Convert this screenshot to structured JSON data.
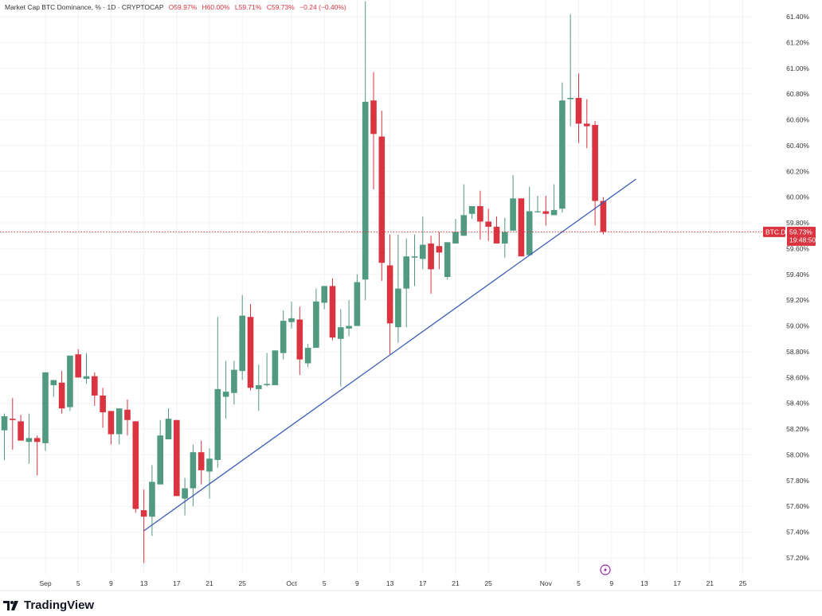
{
  "header": {
    "title": "Market Cap BTC Dominance, % · 1D · CRYPTOCAP",
    "open": "O59.97%",
    "high": "H60.00%",
    "low": "L59.71%",
    "close": "C59.73%",
    "change": "−0.24 (−0.40%)"
  },
  "price_tag": {
    "symbol": "BTC.D",
    "value": "59.73%",
    "countdown": "19:48:50"
  },
  "logo": {
    "text": "TradingView"
  },
  "icons": {
    "event": "lightning-icon",
    "logo": "tradingview-logo-icon"
  },
  "colors": {
    "up": "#519a80",
    "down": "#d9343f",
    "trendline": "#3b5bb5",
    "tag": "#d9343f"
  },
  "chart_data": {
    "type": "candlestick",
    "title": "Market Cap BTC Dominance, % · 1D · CRYPTOCAP",
    "ylim": [
      57.1,
      61.5
    ],
    "y_ticks": [
      "61.40%",
      "61.20%",
      "61.00%",
      "60.80%",
      "60.60%",
      "60.40%",
      "60.20%",
      "60.00%",
      "59.80%",
      "59.60%",
      "59.40%",
      "59.20%",
      "59.00%",
      "58.80%",
      "58.60%",
      "58.40%",
      "58.20%",
      "58.00%",
      "57.80%",
      "57.60%",
      "57.40%",
      "57.20%"
    ],
    "x_ticks": [
      "Sep",
      "5",
      "9",
      "13",
      "17",
      "21",
      "25",
      "Oct",
      "5",
      "9",
      "13",
      "17",
      "21",
      "25",
      "Nov",
      "5",
      "9",
      "13",
      "17",
      "21",
      "25"
    ],
    "x_tick_dates": [
      "Sep 1",
      "Sep 5",
      "Sep 9",
      "Sep 13",
      "Sep 17",
      "Sep 21",
      "Sep 25",
      "Oct 1",
      "Oct 5",
      "Oct 9",
      "Oct 13",
      "Oct 17",
      "Oct 21",
      "Oct 25",
      "Nov 1",
      "Nov 5",
      "Nov 9",
      "Nov 13",
      "Nov 17",
      "Nov 21",
      "Nov 25"
    ],
    "grid": true,
    "current_price": 59.73,
    "trendline": {
      "from": [
        "Sep 13",
        57.41
      ],
      "to": [
        "Nov 12",
        60.14
      ]
    },
    "candles_fields": [
      "date",
      "open",
      "high",
      "low",
      "close"
    ],
    "candles": [
      [
        "Aug 27",
        58.19,
        58.32,
        57.96,
        58.3
      ],
      [
        "Aug 28",
        58.28,
        58.44,
        58.04,
        58.27
      ],
      [
        "Aug 29",
        58.26,
        58.31,
        58.11,
        58.11
      ],
      [
        "Aug 30",
        58.1,
        58.32,
        57.93,
        58.13
      ],
      [
        "Aug 31",
        58.13,
        58.15,
        57.84,
        58.1
      ],
      [
        "Sep 1",
        58.09,
        58.64,
        58.03,
        58.64
      ],
      [
        "Sep 2",
        58.54,
        58.58,
        58.45,
        58.58
      ],
      [
        "Sep 3",
        58.56,
        58.65,
        58.32,
        58.36
      ],
      [
        "Sep 4",
        58.37,
        58.77,
        58.34,
        58.77
      ],
      [
        "Sep 5",
        58.78,
        58.82,
        58.6,
        58.6
      ],
      [
        "Sep 6",
        58.59,
        58.79,
        58.55,
        58.61
      ],
      [
        "Sep 7",
        58.61,
        58.64,
        58.38,
        58.46
      ],
      [
        "Sep 8",
        58.46,
        58.52,
        58.21,
        58.33
      ],
      [
        "Sep 9",
        58.34,
        58.34,
        58.08,
        58.16
      ],
      [
        "Sep 10",
        58.16,
        58.36,
        58.08,
        58.36
      ],
      [
        "Sep 11",
        58.35,
        58.43,
        58.15,
        58.27
      ],
      [
        "Sep 12",
        58.26,
        58.26,
        57.55,
        57.58
      ],
      [
        "Sep 13",
        57.57,
        57.73,
        57.16,
        57.52
      ],
      [
        "Sep 14",
        57.52,
        57.92,
        57.37,
        57.79
      ],
      [
        "Sep 15",
        57.77,
        58.27,
        57.77,
        58.15
      ],
      [
        "Sep 16",
        58.12,
        58.36,
        58.12,
        58.28
      ],
      [
        "Sep 17",
        58.27,
        58.27,
        57.68,
        57.68
      ],
      [
        "Sep 18",
        57.66,
        57.82,
        57.53,
        57.74
      ],
      [
        "Sep 19",
        57.74,
        58.08,
        57.6,
        58.02
      ],
      [
        "Sep 20",
        58.02,
        58.11,
        57.77,
        57.88
      ],
      [
        "Sep 21",
        57.87,
        58.05,
        57.66,
        57.97
      ],
      [
        "Sep 22",
        57.96,
        59.07,
        57.9,
        58.51
      ],
      [
        "Sep 23",
        58.45,
        58.73,
        58.28,
        58.49
      ],
      [
        "Sep 24",
        58.48,
        58.73,
        58.39,
        58.66
      ],
      [
        "Sep 25",
        58.65,
        59.24,
        58.58,
        59.08
      ],
      [
        "Sep 26",
        59.07,
        59.17,
        58.5,
        58.52
      ],
      [
        "Sep 27",
        58.51,
        58.7,
        58.34,
        58.54
      ],
      [
        "Sep 28",
        58.54,
        58.79,
        58.53,
        58.55
      ],
      [
        "Sep 29",
        58.54,
        58.81,
        58.54,
        58.81
      ],
      [
        "Sep 30",
        58.79,
        59.12,
        58.74,
        59.04
      ],
      [
        "Oct 1",
        59.03,
        59.19,
        58.98,
        59.06
      ],
      [
        "Oct 2",
        59.05,
        59.15,
        58.62,
        58.74
      ],
      [
        "Oct 3",
        58.71,
        58.86,
        58.68,
        58.83
      ],
      [
        "Oct 4",
        58.83,
        59.29,
        58.83,
        59.19
      ],
      [
        "Oct 5",
        59.18,
        59.31,
        59.13,
        59.31
      ],
      [
        "Oct 6",
        59.31,
        59.37,
        58.89,
        58.91
      ],
      [
        "Oct 7",
        58.9,
        59.13,
        58.53,
        58.99
      ],
      [
        "Oct 8",
        58.98,
        59.2,
        58.92,
        59.0
      ],
      [
        "Oct 9",
        59.0,
        59.4,
        59.0,
        59.34
      ],
      [
        "Oct 10",
        59.36,
        61.52,
        59.2,
        60.74
      ],
      [
        "Oct 11",
        60.75,
        60.97,
        60.06,
        60.49
      ],
      [
        "Oct 12",
        60.47,
        60.67,
        59.35,
        59.49
      ],
      [
        "Oct 13",
        59.47,
        59.71,
        58.78,
        59.02
      ],
      [
        "Oct 14",
        58.99,
        59.71,
        58.87,
        59.29
      ],
      [
        "Oct 15",
        59.29,
        59.68,
        58.99,
        59.54
      ],
      [
        "Oct 16",
        59.53,
        59.71,
        59.31,
        59.54
      ],
      [
        "Oct 17",
        59.52,
        59.85,
        59.44,
        59.63
      ],
      [
        "Oct 18",
        59.64,
        59.7,
        59.25,
        59.44
      ],
      [
        "Oct 19",
        59.62,
        59.73,
        59.44,
        59.57
      ],
      [
        "Oct 20",
        59.38,
        59.65,
        59.36,
        59.65
      ],
      [
        "Oct 21",
        59.64,
        59.83,
        59.64,
        59.73
      ],
      [
        "Oct 22",
        59.7,
        60.1,
        59.7,
        59.86
      ],
      [
        "Oct 23",
        59.87,
        59.93,
        59.83,
        59.93
      ],
      [
        "Oct 24",
        59.93,
        60.05,
        59.67,
        59.81
      ],
      [
        "Oct 25",
        59.81,
        59.91,
        59.66,
        59.77
      ],
      [
        "Oct 26",
        59.77,
        59.85,
        59.64,
        59.64
      ],
      [
        "Oct 27",
        59.64,
        59.84,
        59.53,
        59.73
      ],
      [
        "Oct 28",
        59.74,
        60.17,
        59.74,
        59.99
      ],
      [
        "Oct 29",
        59.99,
        59.99,
        59.54,
        59.54
      ],
      [
        "Oct 30",
        59.55,
        60.08,
        59.55,
        59.89
      ],
      [
        "Oct 31",
        59.89,
        60.01,
        59.88,
        59.89
      ],
      [
        "Nov 1",
        59.89,
        60.01,
        59.78,
        59.87
      ],
      [
        "Nov 2",
        59.86,
        60.1,
        59.86,
        59.9
      ],
      [
        "Nov 3",
        59.91,
        60.89,
        59.88,
        60.75
      ],
      [
        "Nov 4",
        60.76,
        61.42,
        60.55,
        60.77
      ],
      [
        "Nov 5",
        60.77,
        60.96,
        60.42,
        60.57
      ],
      [
        "Nov 6",
        60.57,
        60.76,
        60.38,
        60.55
      ],
      [
        "Nov 7",
        60.56,
        60.59,
        59.78,
        59.97
      ],
      [
        "Nov 8",
        59.97,
        60.0,
        59.71,
        59.73
      ]
    ]
  }
}
